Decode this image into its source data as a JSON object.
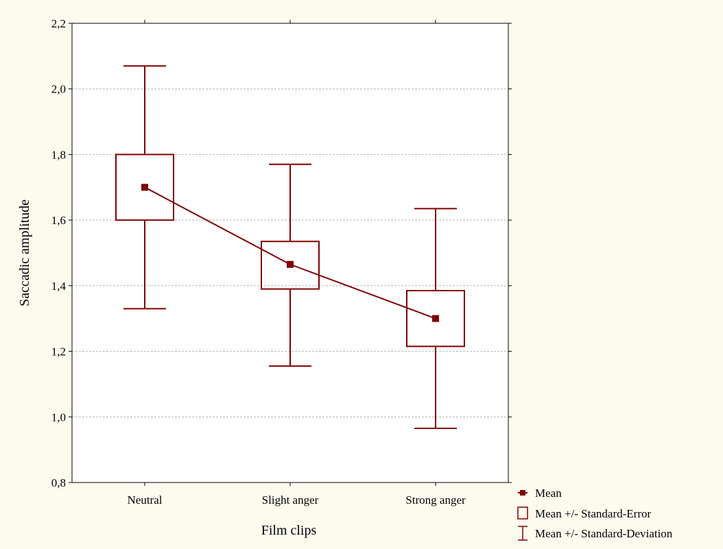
{
  "chart_data": {
    "type": "box",
    "title": "",
    "xlabel": "Film clips",
    "ylabel": "Saccadic amplitude",
    "ylim": [
      0.8,
      2.2
    ],
    "yticks": [
      0.8,
      1.0,
      1.2,
      1.4,
      1.6,
      1.8,
      2.0,
      2.2
    ],
    "ytick_labels": [
      "0,8",
      "1,0",
      "1,2",
      "1,4",
      "1,6",
      "1,8",
      "2,0",
      "2,2"
    ],
    "grid": "horizontal dashed",
    "categories": [
      "Neutral",
      "Slight anger",
      "Strong anger"
    ],
    "mean": [
      1.7,
      1.465,
      1.3
    ],
    "se_low": [
      1.6,
      1.39,
      1.215
    ],
    "se_high": [
      1.8,
      1.535,
      1.385
    ],
    "sd_low": [
      1.33,
      1.155,
      0.965
    ],
    "sd_high": [
      2.07,
      1.77,
      1.635
    ],
    "legend_position": "bottom-right",
    "legend": [
      {
        "symbol": "mean-marker",
        "label": "Mean"
      },
      {
        "symbol": "box",
        "label": "Mean +/- Standard-Error"
      },
      {
        "symbol": "whisker",
        "label": "Mean +/- Standard-Deviation"
      }
    ],
    "colors": {
      "series": "#800000",
      "background": "#fdfbee",
      "plot_bg": "#ffffff",
      "grid": "#b4b4b4"
    }
  }
}
